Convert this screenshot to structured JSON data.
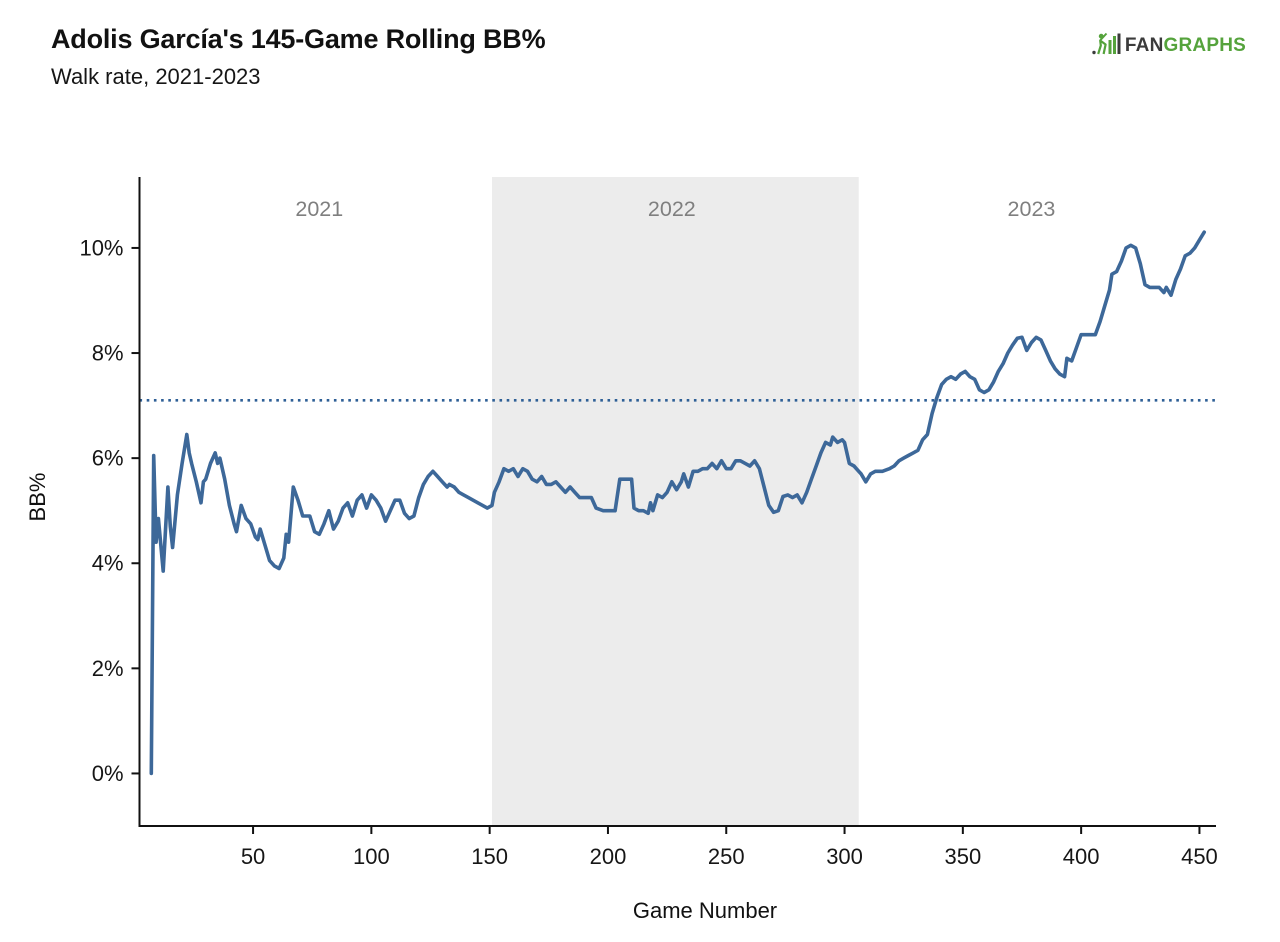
{
  "header": {
    "title": "Adolis García's 145-Game Rolling BB%",
    "subtitle": "Walk rate, 2021-2023"
  },
  "logo": {
    "fan": "FAN",
    "graphs": "GRAPHS",
    "green": "#55a33c",
    "dark": "#3b3b3b"
  },
  "chart_data": {
    "type": "line",
    "title": "Adolis García's 145-Game Rolling BB%",
    "subtitle": "Walk rate, 2021-2023",
    "xlabel": "Game Number",
    "ylabel": "BB%",
    "xlim": [
      2,
      457
    ],
    "ylim": [
      -1.0,
      11.35
    ],
    "x_ticks": [
      50,
      100,
      150,
      200,
      250,
      300,
      350,
      400,
      450
    ],
    "y_ticks": [
      {
        "value": 0,
        "label": "0%"
      },
      {
        "value": 2,
        "label": "2%"
      },
      {
        "value": 4,
        "label": "4%"
      },
      {
        "value": 6,
        "label": "6%"
      },
      {
        "value": 8,
        "label": "8%"
      },
      {
        "value": 10,
        "label": "10%"
      }
    ],
    "grid": false,
    "legend": "none",
    "line_color": "#3d6899",
    "shade_color": "#ececec",
    "year_label_color": "#7f7f7f",
    "reference_line": {
      "value": 7.1,
      "style": "dotted",
      "color": "#2e5f96"
    },
    "seasons": [
      {
        "label": "2021",
        "start": 2,
        "end": 151,
        "shaded": false,
        "label_game": 78
      },
      {
        "label": "2022",
        "start": 151,
        "end": 306,
        "shaded": true,
        "label_game": 227
      },
      {
        "label": "2023",
        "start": 306,
        "end": 457,
        "shaded": false,
        "label_game": 379
      }
    ],
    "series": [
      {
        "name": "145-game rolling BB%",
        "points": [
          [
            7,
            0.0
          ],
          [
            8,
            6.05
          ],
          [
            9,
            4.4
          ],
          [
            10,
            4.85
          ],
          [
            12,
            3.85
          ],
          [
            14,
            5.45
          ],
          [
            15,
            4.7
          ],
          [
            16,
            4.3
          ],
          [
            18,
            5.3
          ],
          [
            20,
            5.9
          ],
          [
            22,
            6.45
          ],
          [
            23,
            6.1
          ],
          [
            24,
            5.9
          ],
          [
            26,
            5.55
          ],
          [
            28,
            5.15
          ],
          [
            29,
            5.55
          ],
          [
            30,
            5.6
          ],
          [
            32,
            5.9
          ],
          [
            34,
            6.1
          ],
          [
            35,
            5.9
          ],
          [
            36,
            6.0
          ],
          [
            38,
            5.6
          ],
          [
            40,
            5.1
          ],
          [
            42,
            4.75
          ],
          [
            43,
            4.6
          ],
          [
            45,
            5.1
          ],
          [
            47,
            4.85
          ],
          [
            49,
            4.75
          ],
          [
            51,
            4.5
          ],
          [
            52,
            4.45
          ],
          [
            53,
            4.65
          ],
          [
            55,
            4.35
          ],
          [
            57,
            4.05
          ],
          [
            59,
            3.95
          ],
          [
            61,
            3.9
          ],
          [
            63,
            4.1
          ],
          [
            64,
            4.55
          ],
          [
            65,
            4.4
          ],
          [
            67,
            5.45
          ],
          [
            69,
            5.2
          ],
          [
            71,
            4.9
          ],
          [
            74,
            4.9
          ],
          [
            76,
            4.6
          ],
          [
            78,
            4.55
          ],
          [
            80,
            4.75
          ],
          [
            82,
            5.0
          ],
          [
            84,
            4.65
          ],
          [
            86,
            4.8
          ],
          [
            88,
            5.05
          ],
          [
            90,
            5.15
          ],
          [
            92,
            4.9
          ],
          [
            94,
            5.2
          ],
          [
            96,
            5.3
          ],
          [
            98,
            5.05
          ],
          [
            100,
            5.3
          ],
          [
            102,
            5.2
          ],
          [
            104,
            5.05
          ],
          [
            106,
            4.8
          ],
          [
            108,
            5.0
          ],
          [
            110,
            5.2
          ],
          [
            112,
            5.2
          ],
          [
            114,
            4.95
          ],
          [
            116,
            4.85
          ],
          [
            118,
            4.9
          ],
          [
            120,
            5.25
          ],
          [
            122,
            5.5
          ],
          [
            124,
            5.65
          ],
          [
            126,
            5.75
          ],
          [
            128,
            5.65
          ],
          [
            130,
            5.55
          ],
          [
            132,
            5.45
          ],
          [
            133,
            5.5
          ],
          [
            135,
            5.45
          ],
          [
            137,
            5.35
          ],
          [
            139,
            5.3
          ],
          [
            141,
            5.25
          ],
          [
            143,
            5.2
          ],
          [
            145,
            5.15
          ],
          [
            147,
            5.1
          ],
          [
            149,
            5.05
          ],
          [
            151,
            5.1
          ],
          [
            152,
            5.35
          ],
          [
            154,
            5.55
          ],
          [
            156,
            5.8
          ],
          [
            158,
            5.75
          ],
          [
            160,
            5.8
          ],
          [
            162,
            5.65
          ],
          [
            164,
            5.8
          ],
          [
            166,
            5.75
          ],
          [
            168,
            5.6
          ],
          [
            170,
            5.55
          ],
          [
            172,
            5.65
          ],
          [
            174,
            5.5
          ],
          [
            176,
            5.5
          ],
          [
            178,
            5.55
          ],
          [
            180,
            5.45
          ],
          [
            182,
            5.35
          ],
          [
            184,
            5.45
          ],
          [
            186,
            5.35
          ],
          [
            188,
            5.25
          ],
          [
            190,
            5.25
          ],
          [
            193,
            5.25
          ],
          [
            195,
            5.05
          ],
          [
            198,
            5.0
          ],
          [
            201,
            5.0
          ],
          [
            203,
            5.0
          ],
          [
            205,
            5.6
          ],
          [
            208,
            5.6
          ],
          [
            210,
            5.6
          ],
          [
            211,
            5.05
          ],
          [
            213,
            5.0
          ],
          [
            215,
            5.0
          ],
          [
            217,
            4.95
          ],
          [
            218,
            5.15
          ],
          [
            219,
            5.0
          ],
          [
            221,
            5.3
          ],
          [
            223,
            5.25
          ],
          [
            225,
            5.35
          ],
          [
            227,
            5.55
          ],
          [
            229,
            5.4
          ],
          [
            231,
            5.55
          ],
          [
            232,
            5.7
          ],
          [
            234,
            5.45
          ],
          [
            236,
            5.75
          ],
          [
            238,
            5.75
          ],
          [
            240,
            5.8
          ],
          [
            242,
            5.8
          ],
          [
            244,
            5.9
          ],
          [
            246,
            5.8
          ],
          [
            248,
            5.95
          ],
          [
            250,
            5.8
          ],
          [
            252,
            5.8
          ],
          [
            254,
            5.95
          ],
          [
            256,
            5.95
          ],
          [
            258,
            5.9
          ],
          [
            260,
            5.85
          ],
          [
            262,
            5.95
          ],
          [
            264,
            5.8
          ],
          [
            266,
            5.45
          ],
          [
            268,
            5.1
          ],
          [
            270,
            4.97
          ],
          [
            272,
            5.0
          ],
          [
            274,
            5.27
          ],
          [
            276,
            5.3
          ],
          [
            278,
            5.25
          ],
          [
            280,
            5.3
          ],
          [
            282,
            5.15
          ],
          [
            284,
            5.35
          ],
          [
            286,
            5.6
          ],
          [
            288,
            5.85
          ],
          [
            290,
            6.1
          ],
          [
            292,
            6.3
          ],
          [
            294,
            6.25
          ],
          [
            295,
            6.4
          ],
          [
            297,
            6.3
          ],
          [
            299,
            6.35
          ],
          [
            300,
            6.3
          ],
          [
            302,
            5.9
          ],
          [
            304,
            5.85
          ],
          [
            306,
            5.75
          ],
          [
            307,
            5.7
          ],
          [
            309,
            5.55
          ],
          [
            311,
            5.7
          ],
          [
            313,
            5.75
          ],
          [
            316,
            5.75
          ],
          [
            319,
            5.8
          ],
          [
            321,
            5.85
          ],
          [
            323,
            5.95
          ],
          [
            325,
            6.0
          ],
          [
            327,
            6.05
          ],
          [
            329,
            6.1
          ],
          [
            331,
            6.15
          ],
          [
            333,
            6.35
          ],
          [
            335,
            6.45
          ],
          [
            337,
            6.85
          ],
          [
            339,
            7.15
          ],
          [
            341,
            7.4
          ],
          [
            343,
            7.5
          ],
          [
            345,
            7.55
          ],
          [
            347,
            7.5
          ],
          [
            349,
            7.6
          ],
          [
            351,
            7.65
          ],
          [
            353,
            7.55
          ],
          [
            355,
            7.5
          ],
          [
            357,
            7.3
          ],
          [
            359,
            7.25
          ],
          [
            361,
            7.3
          ],
          [
            363,
            7.45
          ],
          [
            365,
            7.65
          ],
          [
            367,
            7.8
          ],
          [
            369,
            8.0
          ],
          [
            371,
            8.15
          ],
          [
            373,
            8.28
          ],
          [
            375,
            8.3
          ],
          [
            377,
            8.05
          ],
          [
            379,
            8.2
          ],
          [
            381,
            8.3
          ],
          [
            383,
            8.25
          ],
          [
            385,
            8.05
          ],
          [
            387,
            7.85
          ],
          [
            389,
            7.7
          ],
          [
            391,
            7.6
          ],
          [
            393,
            7.55
          ],
          [
            394,
            7.9
          ],
          [
            396,
            7.85
          ],
          [
            398,
            8.1
          ],
          [
            400,
            8.35
          ],
          [
            403,
            8.35
          ],
          [
            406,
            8.35
          ],
          [
            408,
            8.6
          ],
          [
            410,
            8.9
          ],
          [
            412,
            9.2
          ],
          [
            413,
            9.5
          ],
          [
            415,
            9.55
          ],
          [
            417,
            9.75
          ],
          [
            419,
            10.0
          ],
          [
            421,
            10.05
          ],
          [
            423,
            10.0
          ],
          [
            425,
            9.7
          ],
          [
            427,
            9.3
          ],
          [
            429,
            9.25
          ],
          [
            431,
            9.25
          ],
          [
            433,
            9.25
          ],
          [
            435,
            9.15
          ],
          [
            436,
            9.25
          ],
          [
            438,
            9.1
          ],
          [
            440,
            9.4
          ],
          [
            442,
            9.6
          ],
          [
            444,
            9.85
          ],
          [
            446,
            9.9
          ],
          [
            448,
            10.0
          ],
          [
            450,
            10.15
          ],
          [
            452,
            10.3
          ]
        ]
      }
    ]
  }
}
